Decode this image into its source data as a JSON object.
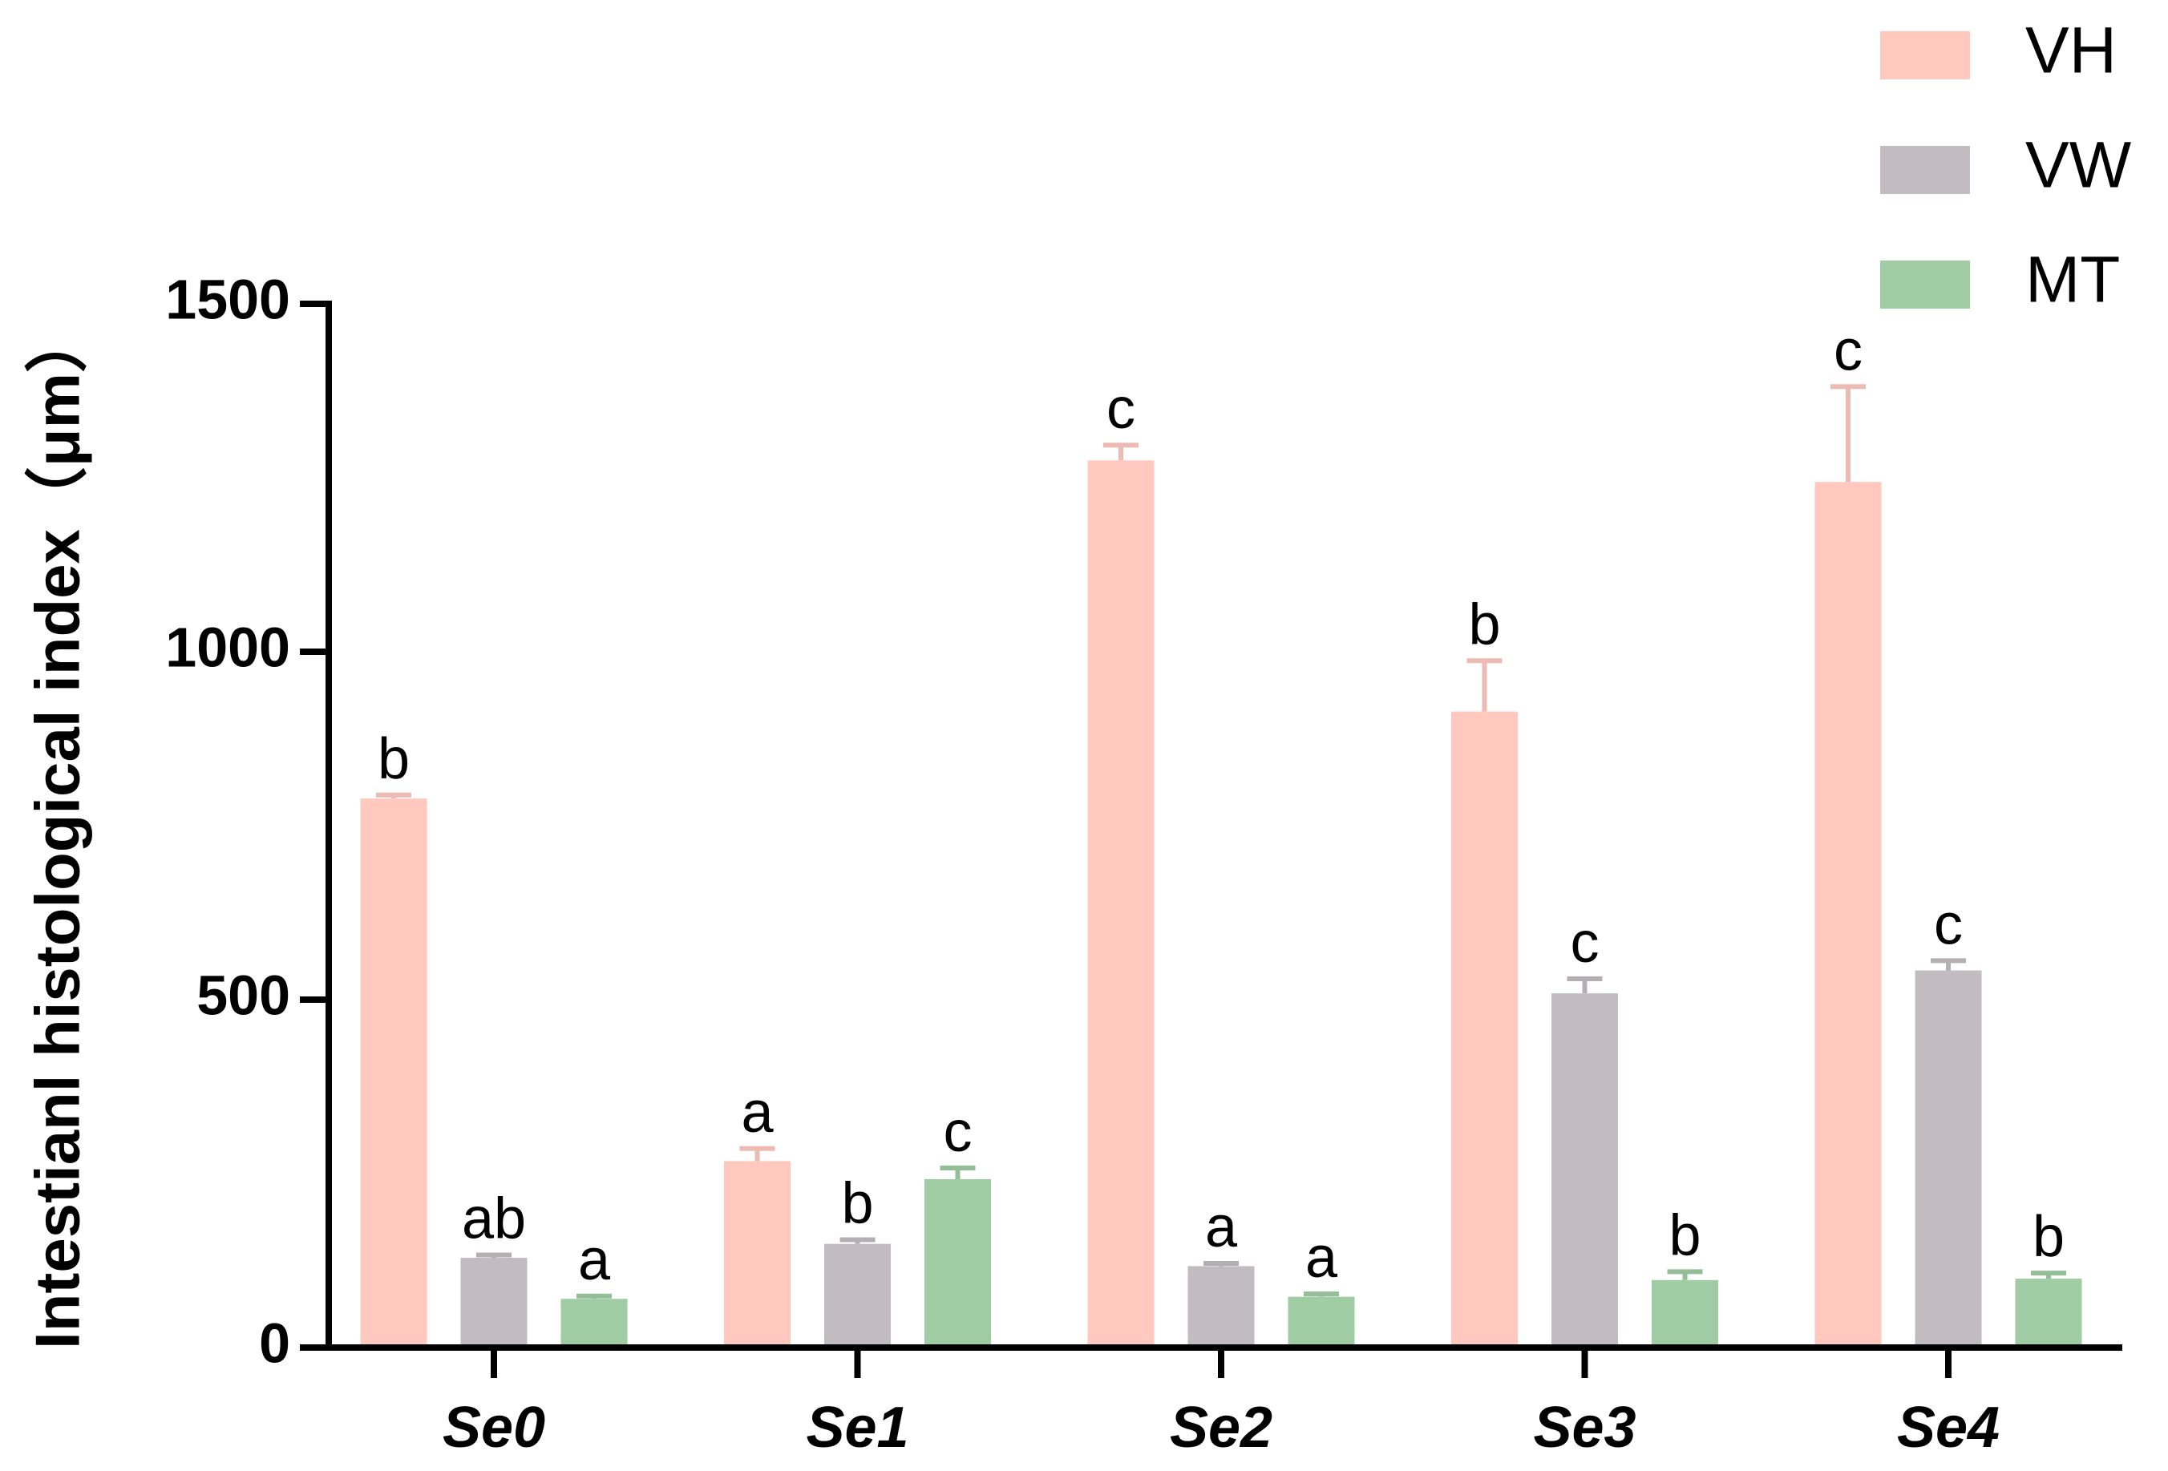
{
  "chart_data": {
    "type": "bar",
    "y_label": "Intestianl histological index（μm）",
    "categories": [
      "Se0",
      "Se1",
      "Se2",
      "Se3",
      "Se4"
    ],
    "series": [
      {
        "name": "VH",
        "color": "#ffc9c0",
        "values": [
          789,
          268,
          1275,
          914,
          1244
        ],
        "errors": [
          5,
          18,
          22,
          73,
          137
        ],
        "letters": [
          "b",
          "a",
          "c",
          "b",
          "c"
        ]
      },
      {
        "name": "VW",
        "color": "#c2bcc0",
        "values": [
          129,
          149,
          117,
          509,
          542
        ],
        "errors": [
          4,
          6,
          4,
          21,
          14
        ],
        "letters": [
          "ab",
          "b",
          "a",
          "c",
          "c"
        ]
      },
      {
        "name": "MT",
        "color": "#9fcca3",
        "values": [
          70,
          242,
          73,
          97,
          99
        ],
        "errors": [
          4,
          16,
          4,
          12,
          8
        ],
        "letters": [
          "a",
          "c",
          "a",
          "b",
          "b"
        ]
      }
    ],
    "ylim": [
      0,
      1500
    ],
    "yticks": [
      0,
      500,
      1000,
      1500
    ],
    "legend": "top-right"
  }
}
